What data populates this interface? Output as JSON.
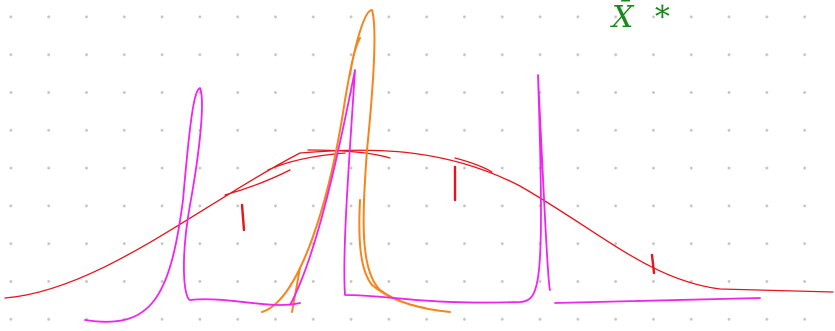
{
  "annotation": "X̄ *"
}
